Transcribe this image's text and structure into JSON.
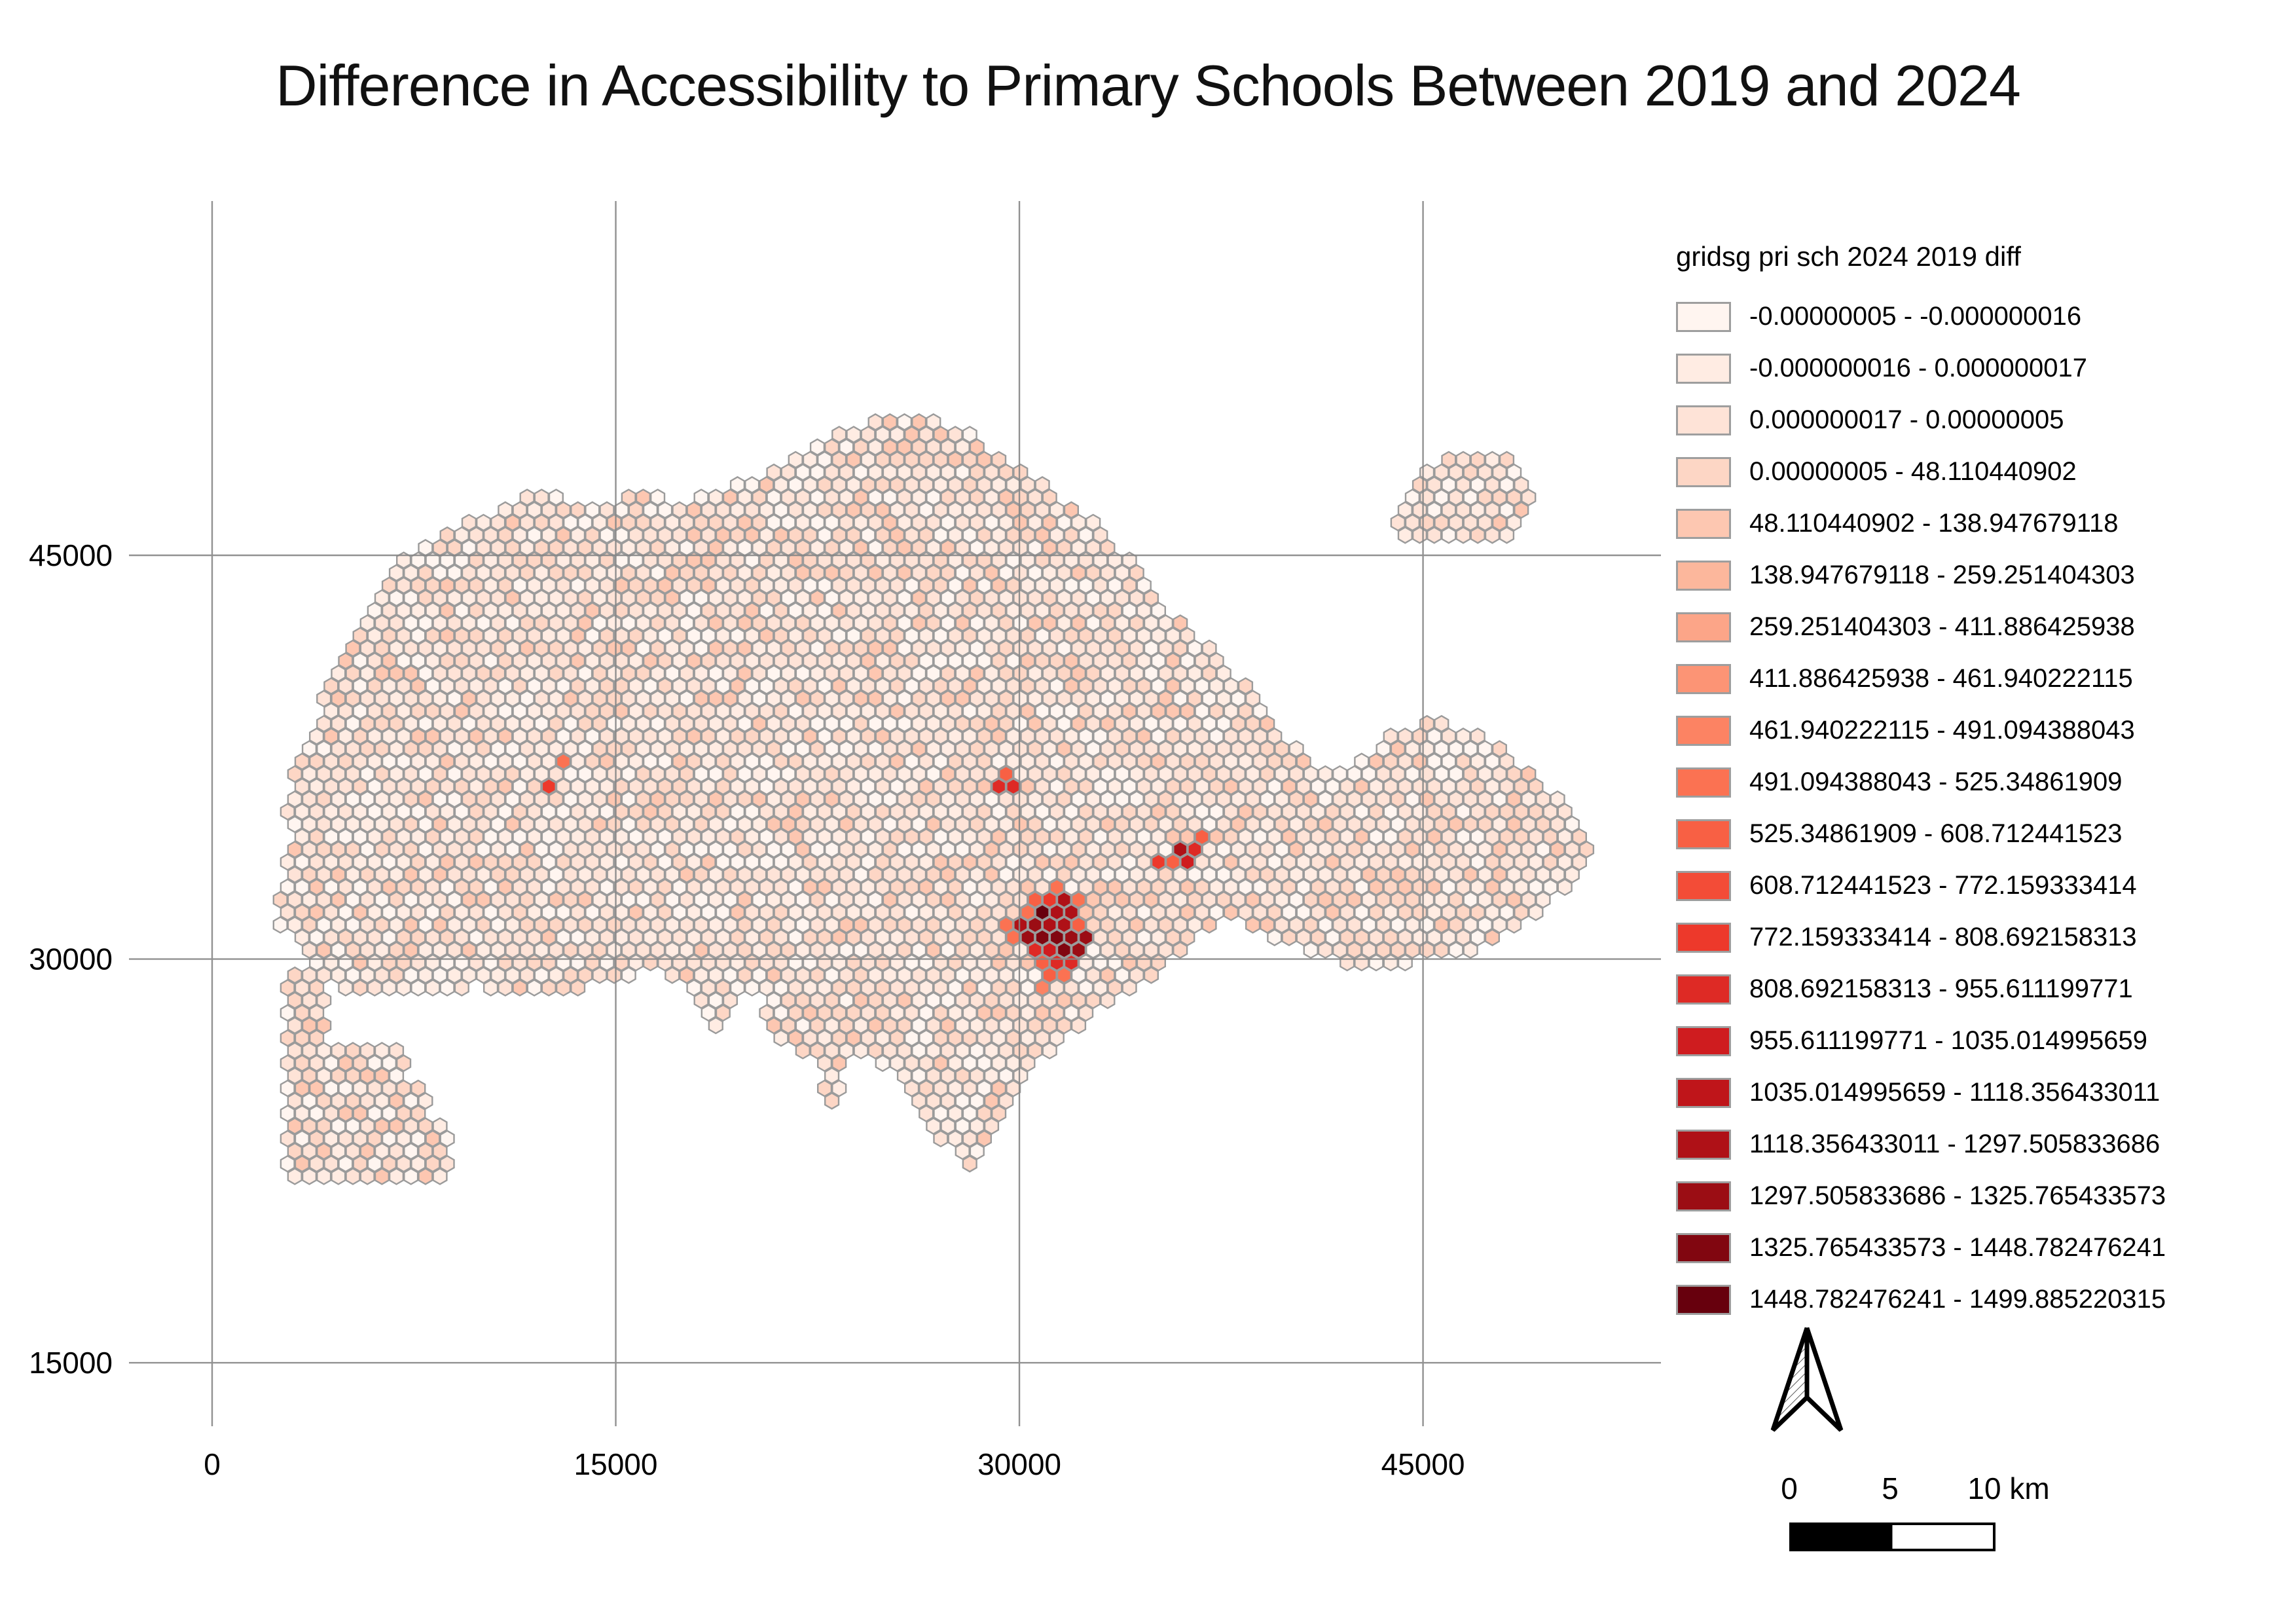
{
  "title": "Difference in Accessibility to Primary Schools Between 2019 and 2024",
  "axes": {
    "x_tick_labels": [
      "0",
      "15000",
      "30000",
      "45000"
    ],
    "x_tick_values": [
      0,
      15000,
      30000,
      45000
    ],
    "y_tick_labels": [
      "45000",
      "30000",
      "15000"
    ],
    "y_tick_values": [
      45000,
      30000,
      15000
    ],
    "grid_on": true
  },
  "legend": {
    "title": "gridsg pri sch 2024 2019 diff",
    "classes": [
      {
        "label": "-0.00000005 - -0.000000016",
        "color": "#fff5f0"
      },
      {
        "label": "-0.000000016 - 0.000000017",
        "color": "#ffece3"
      },
      {
        "label": "0.000000017 - 0.00000005",
        "color": "#fee3d7"
      },
      {
        "label": "0.00000005 - 48.110440902",
        "color": "#fdd6c5"
      },
      {
        "label": "48.110440902 - 138.947679118",
        "color": "#fdc7b1"
      },
      {
        "label": "138.947679118 - 259.251404303",
        "color": "#fcb79c"
      },
      {
        "label": "259.251404303 - 411.886425938",
        "color": "#fca588"
      },
      {
        "label": "411.886425938 - 461.940222115",
        "color": "#fc9475"
      },
      {
        "label": "461.940222115 - 491.094388043",
        "color": "#fc8363"
      },
      {
        "label": "491.094388043 - 525.34861909",
        "color": "#fb7252"
      },
      {
        "label": "525.34861909 - 608.712441523",
        "color": "#f86044"
      },
      {
        "label": "608.712441523 - 772.159333414",
        "color": "#f34c37"
      },
      {
        "label": "772.159333414 - 808.692158313",
        "color": "#ed392b"
      },
      {
        "label": "808.692158313 - 955.611199771",
        "color": "#de2a25"
      },
      {
        "label": "955.611199771 - 1035.014995659",
        "color": "#cf1c1f"
      },
      {
        "label": "1035.014995659 - 1118.356433011",
        "color": "#bf151a"
      },
      {
        "label": "1118.356433011 - 1297.505833686",
        "color": "#af1117"
      },
      {
        "label": "1297.505833686 - 1325.765433573",
        "color": "#9b0d14"
      },
      {
        "label": "1325.765433573 - 1448.782476241",
        "color": "#810610"
      },
      {
        "label": "1448.782476241 - 1499.885220315",
        "color": "#67000d"
      }
    ]
  },
  "scale_bar": {
    "labels": [
      "0",
      "5",
      "10 km"
    ]
  },
  "north_arrow": {
    "name": "north-arrow"
  },
  "hex_map": {
    "base_class_weights": [
      0.18,
      0.22,
      0.28,
      0.22,
      0.1
    ],
    "regions": [
      {
        "name": "mainland",
        "points": [
          [
            2450,
            31100
          ],
          [
            2600,
            33300
          ],
          [
            3000,
            34450
          ],
          [
            2650,
            35200
          ],
          [
            2950,
            36800
          ],
          [
            4250,
            40050
          ],
          [
            5700,
            42900
          ],
          [
            7250,
            45000
          ],
          [
            9100,
            46150
          ],
          [
            11050,
            46800
          ],
          [
            12200,
            47500
          ],
          [
            13250,
            46950
          ],
          [
            14900,
            46850
          ],
          [
            16150,
            47700
          ],
          [
            17350,
            46950
          ],
          [
            19550,
            47700
          ],
          [
            22000,
            48800
          ],
          [
            24200,
            50000
          ],
          [
            26950,
            50100
          ],
          [
            28400,
            49400
          ],
          [
            30000,
            48300
          ],
          [
            31900,
            46950
          ],
          [
            33450,
            45750
          ],
          [
            34900,
            43800
          ],
          [
            36600,
            42000
          ],
          [
            38300,
            40400
          ],
          [
            39750,
            38450
          ],
          [
            40950,
            37100
          ],
          [
            42050,
            36900
          ],
          [
            43600,
            38200
          ],
          [
            45150,
            38800
          ],
          [
            46900,
            38650
          ],
          [
            48500,
            37450
          ],
          [
            50450,
            35750
          ],
          [
            51400,
            34200
          ],
          [
            51000,
            33200
          ],
          [
            49250,
            31750
          ],
          [
            47750,
            30800
          ],
          [
            46300,
            30050
          ],
          [
            44450,
            29850
          ],
          [
            42000,
            29850
          ],
          [
            39550,
            30600
          ],
          [
            38350,
            31300
          ],
          [
            37700,
            31550
          ],
          [
            35900,
            30100
          ],
          [
            34300,
            28800
          ],
          [
            33150,
            28350
          ],
          [
            32500,
            27700
          ],
          [
            31600,
            26950
          ],
          [
            30250,
            25750
          ],
          [
            29800,
            24500
          ],
          [
            28850,
            23200
          ],
          [
            28000,
            22200
          ],
          [
            27150,
            23200
          ],
          [
            26400,
            24250
          ],
          [
            25450,
            25500
          ],
          [
            24600,
            26350
          ],
          [
            23750,
            26500
          ],
          [
            23500,
            25500
          ],
          [
            23400,
            24350
          ],
          [
            22800,
            24350
          ],
          [
            22550,
            25500
          ],
          [
            22350,
            26450
          ],
          [
            21300,
            26700
          ],
          [
            20650,
            27550
          ],
          [
            20450,
            28750
          ],
          [
            19550,
            28850
          ],
          [
            19100,
            27650
          ],
          [
            18750,
            27500
          ],
          [
            17850,
            28100
          ],
          [
            17400,
            29100
          ],
          [
            16450,
            29600
          ],
          [
            15000,
            29250
          ],
          [
            13300,
            28850
          ],
          [
            11600,
            28600
          ],
          [
            9900,
            29000
          ],
          [
            8150,
            28550
          ],
          [
            6250,
            28550
          ],
          [
            4300,
            29000
          ],
          [
            3550,
            29800
          ],
          [
            3000,
            30800
          ]
        ]
      },
      {
        "name": "northeast-islands",
        "points": [
          [
            43950,
            46350
          ],
          [
            44800,
            48300
          ],
          [
            46350,
            48900
          ],
          [
            48100,
            48600
          ],
          [
            49150,
            47250
          ],
          [
            48100,
            45700
          ],
          [
            46000,
            45250
          ],
          [
            44450,
            45450
          ]
        ]
      },
      {
        "name": "southwest-column",
        "points": [
          [
            2650,
            29400
          ],
          [
            4400,
            29400
          ],
          [
            4400,
            21700
          ],
          [
            2650,
            21700
          ]
        ]
      },
      {
        "name": "southwest-finger-1",
        "points": [
          [
            4400,
            26700
          ],
          [
            7250,
            26700
          ],
          [
            7250,
            25550
          ],
          [
            4400,
            25550
          ]
        ]
      },
      {
        "name": "southwest-finger-2",
        "points": [
          [
            4400,
            25250
          ],
          [
            8100,
            25250
          ],
          [
            8100,
            24100
          ],
          [
            4400,
            24100
          ]
        ]
      },
      {
        "name": "southwest-finger-3",
        "points": [
          [
            4400,
            23800
          ],
          [
            8900,
            23800
          ],
          [
            8900,
            21800
          ],
          [
            4400,
            21800
          ]
        ]
      }
    ],
    "hotspots": [
      [
        12450,
        36500,
        12
      ],
      [
        12850,
        37250,
        9
      ],
      [
        29350,
        36700,
        10
      ],
      [
        29750,
        36500,
        13
      ],
      [
        29350,
        36250,
        13
      ],
      [
        35850,
        34050,
        16
      ],
      [
        36250,
        34300,
        13
      ],
      [
        36700,
        34550,
        10
      ],
      [
        36250,
        33750,
        14
      ],
      [
        35400,
        33750,
        12
      ],
      [
        35850,
        33500,
        10
      ],
      [
        31500,
        32600,
        9
      ],
      [
        31050,
        32350,
        12
      ],
      [
        31950,
        32350,
        13
      ],
      [
        30600,
        32100,
        10
      ],
      [
        31500,
        32100,
        16
      ],
      [
        32400,
        32100,
        9
      ],
      [
        31050,
        31850,
        16
      ],
      [
        31950,
        31850,
        16
      ],
      [
        30150,
        31600,
        9
      ],
      [
        30600,
        31600,
        19
      ],
      [
        31500,
        31600,
        16
      ],
      [
        29700,
        31400,
        9
      ],
      [
        31050,
        31400,
        16
      ],
      [
        31950,
        31400,
        12
      ],
      [
        30150,
        31150,
        16
      ],
      [
        30600,
        31150,
        17
      ],
      [
        31500,
        31150,
        16
      ],
      [
        32400,
        31150,
        10
      ],
      [
        29700,
        30900,
        9
      ],
      [
        31050,
        30900,
        19
      ],
      [
        31950,
        30900,
        17
      ],
      [
        30150,
        30650,
        17
      ],
      [
        30600,
        30650,
        18
      ],
      [
        31500,
        30650,
        18
      ],
      [
        32400,
        30650,
        17
      ],
      [
        31050,
        30400,
        14
      ],
      [
        31950,
        30400,
        17
      ],
      [
        30600,
        30150,
        13
      ],
      [
        31500,
        30150,
        18
      ],
      [
        31050,
        29900,
        14
      ],
      [
        31950,
        29900,
        13
      ],
      [
        31500,
        29700,
        13
      ],
      [
        30600,
        29700,
        10
      ],
      [
        31050,
        29450,
        10
      ],
      [
        31500,
        29200,
        9
      ],
      [
        31050,
        28950,
        8
      ]
    ]
  }
}
